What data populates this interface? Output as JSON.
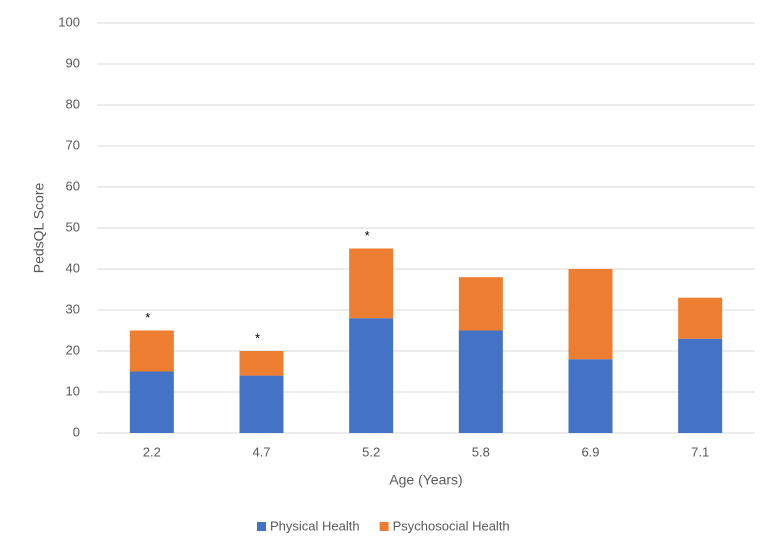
{
  "chart_data": {
    "type": "stacked-bar",
    "x_label": "Age (Years)",
    "y_label": "PedsQL Score",
    "categories": [
      "2.2",
      "4.7",
      "5.2",
      "5.8",
      "6.9",
      "7.1"
    ],
    "series": [
      {
        "name": "Physical Health",
        "color": "#4472c4",
        "values": [
          15,
          14,
          28,
          25,
          18,
          23
        ]
      },
      {
        "name": "Psychosocial Health",
        "color": "#ed7d31",
        "values": [
          10,
          6,
          17,
          13,
          22,
          10
        ]
      }
    ],
    "annotations": [
      "*",
      "*",
      "*",
      null,
      null,
      null
    ],
    "ylim": [
      0,
      100
    ],
    "yticks": [
      0,
      10,
      20,
      30,
      40,
      50,
      60,
      70,
      80,
      90,
      100
    ],
    "grid": true,
    "legend": "bottom"
  }
}
